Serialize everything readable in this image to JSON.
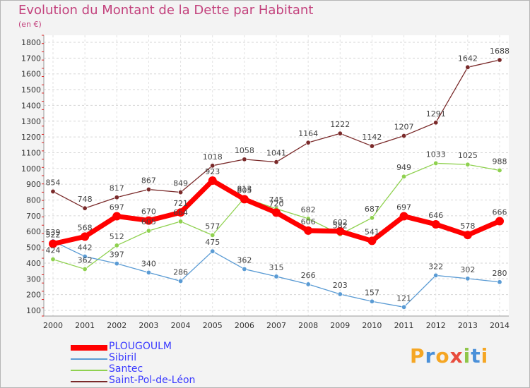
{
  "chart_data": {
    "type": "line",
    "title": "Evolution du Montant de la Dette par Habitant",
    "subtitle": "(en €)",
    "x": [
      "2000",
      "2001",
      "2002",
      "2003",
      "2004",
      "2005",
      "2006",
      "2007",
      "2008",
      "2009",
      "2010",
      "2011",
      "2012",
      "2013",
      "2014"
    ],
    "ylim": [
      100,
      1800
    ],
    "yticks": [
      100,
      200,
      300,
      400,
      500,
      600,
      700,
      800,
      900,
      1000,
      1100,
      1200,
      1300,
      1400,
      1500,
      1600,
      1700,
      1800
    ],
    "series": [
      {
        "name": "PLOUGOULM",
        "color": "#ff0000",
        "values": [
          522,
          568,
          697,
          670,
          721,
          923,
          805,
          720,
          606,
          602,
          541,
          697,
          646,
          578,
          666
        ]
      },
      {
        "name": "Sibiril",
        "color": "#5a9bd4",
        "values": [
          539,
          442,
          397,
          340,
          286,
          475,
          362,
          315,
          266,
          203,
          157,
          121,
          322,
          302,
          280
        ]
      },
      {
        "name": "Santec",
        "color": "#8fd14f",
        "values": [
          424,
          362,
          512,
          605,
          664,
          577,
          813,
          745,
          682,
          582,
          687,
          949,
          1033,
          1025,
          988
        ]
      },
      {
        "name": "Saint-Pol-de-Léon",
        "color": "#7a2a2a",
        "values": [
          854,
          748,
          817,
          867,
          849,
          1018,
          1058,
          1041,
          1164,
          1222,
          1142,
          1207,
          1291,
          1642,
          1688
        ]
      }
    ]
  },
  "logo": {
    "text": "Proxiti",
    "letters": [
      "P",
      "r",
      "o",
      "x",
      "i",
      "t",
      "i"
    ],
    "colors": [
      "#f5a623",
      "#4a90d9",
      "#f5a623",
      "#e84c3d",
      "#8fc649",
      "#4a90d9",
      "#f5a623"
    ]
  }
}
